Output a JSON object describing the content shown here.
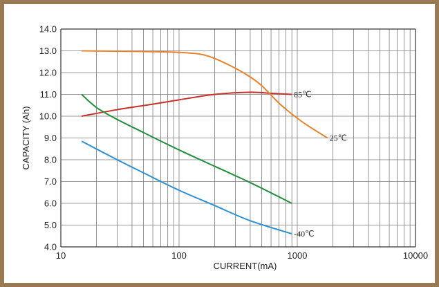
{
  "chart_data": {
    "type": "line",
    "xlabel": "CURRENT(mA)",
    "ylabel": "CAPACITY (Ah)",
    "xscale": "log",
    "xlim": [
      10,
      10000
    ],
    "ylim": [
      4.0,
      14.0
    ],
    "grid": true,
    "x_ticks": [
      {
        "value": 10,
        "label": "10"
      },
      {
        "value": 100,
        "label": "100"
      },
      {
        "value": 1000,
        "label": "1000"
      },
      {
        "value": 10000,
        "label": "10000"
      }
    ],
    "y_ticks": [
      {
        "value": 14,
        "label": "14.0"
      },
      {
        "value": 13,
        "label": "13.0"
      },
      {
        "value": 12,
        "label": "12.0"
      },
      {
        "value": 11,
        "label": "11.0"
      },
      {
        "value": 10,
        "label": "10.0"
      },
      {
        "value": 9,
        "label": "9.0"
      },
      {
        "value": 8,
        "label": "8.0"
      },
      {
        "value": 7,
        "label": "7.0"
      },
      {
        "value": 6,
        "label": "6.0"
      },
      {
        "value": 5,
        "label": "5.0"
      },
      {
        "value": 4,
        "label": "4.0"
      }
    ],
    "series": [
      {
        "name": "85℃",
        "color": "#c8302a",
        "points": [
          [
            15,
            10.0
          ],
          [
            30,
            10.3
          ],
          [
            60,
            10.55
          ],
          [
            100,
            10.75
          ],
          [
            200,
            11.0
          ],
          [
            400,
            11.1
          ],
          [
            600,
            11.05
          ],
          [
            900,
            11.0
          ]
        ]
      },
      {
        "name": "25℃",
        "color": "#e8812a",
        "points": [
          [
            15,
            13.0
          ],
          [
            50,
            12.97
          ],
          [
            100,
            12.93
          ],
          [
            150,
            12.85
          ],
          [
            200,
            12.65
          ],
          [
            300,
            12.2
          ],
          [
            400,
            11.8
          ],
          [
            500,
            11.4
          ],
          [
            700,
            10.6
          ],
          [
            900,
            10.1
          ],
          [
            1200,
            9.6
          ],
          [
            1800,
            9.0
          ]
        ]
      },
      {
        "name": "",
        "color": "#1f8f3a",
        "points": [
          [
            15,
            11.0
          ],
          [
            20,
            10.4
          ],
          [
            30,
            9.85
          ],
          [
            50,
            9.25
          ],
          [
            100,
            8.45
          ],
          [
            200,
            7.7
          ],
          [
            400,
            6.95
          ],
          [
            900,
            6.0
          ]
        ]
      },
      {
        "name": "-40℃",
        "color": "#2a8fd6",
        "points": [
          [
            15,
            8.85
          ],
          [
            30,
            8.0
          ],
          [
            50,
            7.4
          ],
          [
            100,
            6.6
          ],
          [
            200,
            5.9
          ],
          [
            400,
            5.2
          ],
          [
            900,
            4.6
          ]
        ]
      }
    ]
  }
}
